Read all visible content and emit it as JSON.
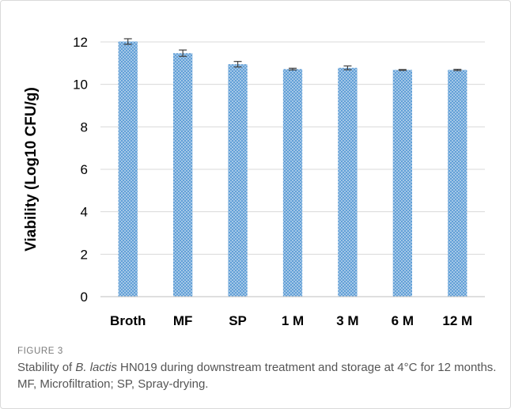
{
  "figure": {
    "label": "FIGURE 3",
    "caption": {
      "before_italic": "Stability of ",
      "italic": "B. lactis",
      "after_italic": " HN019 during downstream treatment and storage at 4°C for 12 months. MF, Microfiltration; SP, Spray-drying."
    }
  },
  "chart_data": {
    "type": "bar",
    "title": "",
    "xlabel": "",
    "ylabel": "Viability (Log10 CFU/g)",
    "categories": [
      "Broth",
      "MF",
      "SP",
      "1 M",
      "3 M",
      "6 M",
      "12 M"
    ],
    "values": [
      12.02,
      11.47,
      10.95,
      10.72,
      10.78,
      10.68,
      10.68
    ],
    "errors": [
      0.13,
      0.15,
      0.13,
      0.04,
      0.09,
      0.02,
      0.03
    ],
    "ylim": [
      0,
      12
    ],
    "yticks": [
      0,
      2,
      4,
      6,
      8,
      10,
      12
    ],
    "grid": true,
    "legend": "none",
    "colors": {
      "bar": "#5b9bd5",
      "bar_hatch": "#bdd7ee",
      "grid": "#d9d9d9",
      "axis": "#bfbfbf",
      "text": "#000000",
      "error": "#404040"
    }
  }
}
